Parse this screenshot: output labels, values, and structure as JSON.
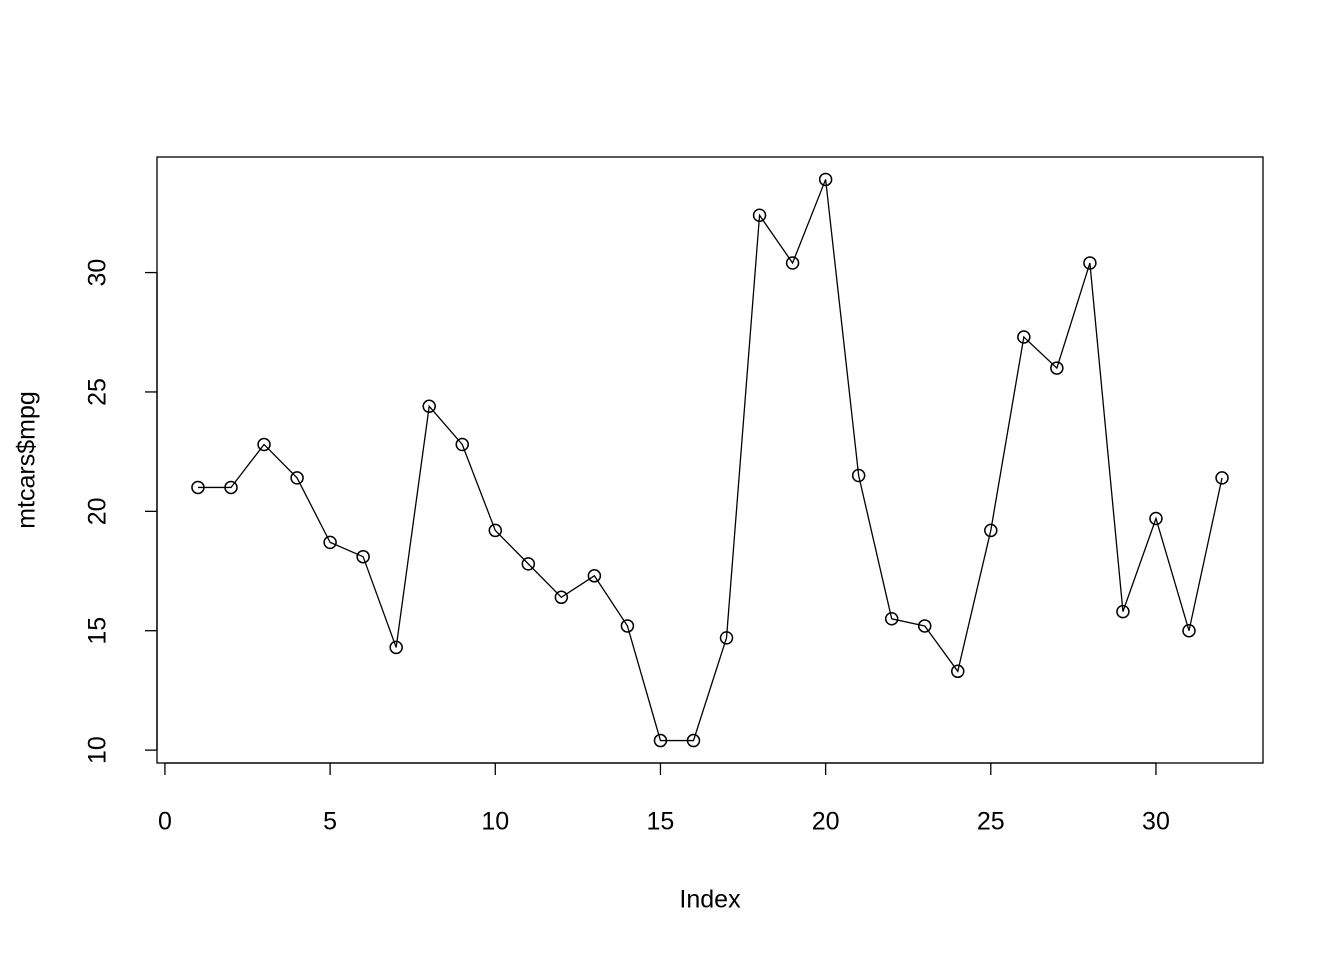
{
  "chart_data": {
    "type": "line",
    "x_label": "Index",
    "y_label": "mtcars$mpg",
    "x": [
      1,
      2,
      3,
      4,
      5,
      6,
      7,
      8,
      9,
      10,
      11,
      12,
      13,
      14,
      15,
      16,
      17,
      18,
      19,
      20,
      21,
      22,
      23,
      24,
      25,
      26,
      27,
      28,
      29,
      30,
      31,
      32
    ],
    "values": [
      21.0,
      21.0,
      22.8,
      21.4,
      18.7,
      18.1,
      14.3,
      24.4,
      22.8,
      19.2,
      17.8,
      16.4,
      17.3,
      15.2,
      10.4,
      10.4,
      14.7,
      32.4,
      30.4,
      33.9,
      21.5,
      15.5,
      15.2,
      13.3,
      19.2,
      27.3,
      26.0,
      30.4,
      15.8,
      19.7,
      15.0,
      21.4
    ],
    "color": "#000000",
    "xlim": [
      -0.24,
      33.24
    ],
    "xticks": [
      0,
      5,
      10,
      15,
      20,
      25,
      30
    ],
    "ylim": [
      9.46,
      34.84
    ],
    "yticks": [
      10,
      15,
      20,
      25,
      30
    ],
    "grid": false
  }
}
